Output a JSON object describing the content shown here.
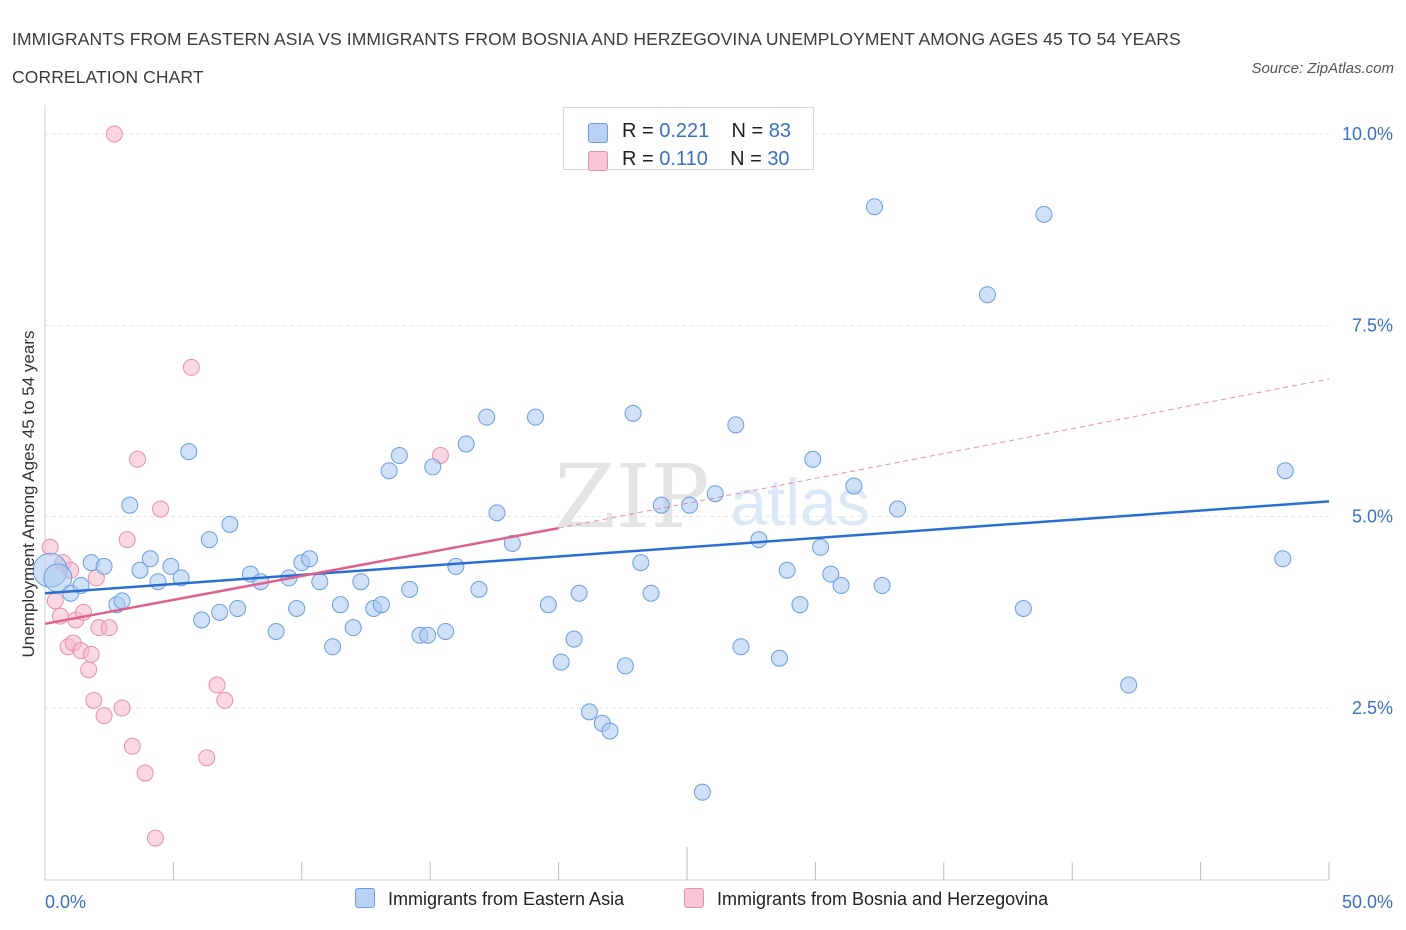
{
  "title": "IMMIGRANTS FROM EASTERN ASIA VS IMMIGRANTS FROM BOSNIA AND HERZEGOVINA UNEMPLOYMENT AMONG AGES 45 TO 54 YEARS CORRELATION CHART",
  "source": "Source: ZipAtlas.com",
  "watermark": {
    "zip": "ZIP",
    "atlas": "atlas"
  },
  "legend": {
    "r_label": "R =",
    "n_label": "N =",
    "series1": {
      "r": "0.221",
      "n": "83"
    },
    "series2": {
      "r": "0.110",
      "n": "30"
    }
  },
  "colors": {
    "blue_fill": "#aac8f0",
    "blue_stroke": "#6a9ee0",
    "blue_line": "#2a6fd0",
    "pink_fill": "#f5b8cb",
    "pink_stroke": "#e890ab",
    "pink_line": "#e0608d",
    "axis_label": "#3a6fc4",
    "grid": "#e6e6e6"
  },
  "chart_data": {
    "type": "scatter",
    "title": "IMMIGRANTS FROM EASTERN ASIA VS IMMIGRANTS FROM BOSNIA AND HERZEGOVINA UNEMPLOYMENT AMONG AGES 45 TO 54 YEARS CORRELATION CHART",
    "ylabel": "Unemployment Among Ages 45 to 54 years",
    "xlim": [
      0,
      50
    ],
    "ylim": [
      0,
      10.5
    ],
    "x_tick_labels": [
      "0.0%",
      "50.0%"
    ],
    "y_ticks": [
      2.5,
      5.0,
      7.5,
      10.0
    ],
    "y_tick_labels": [
      "2.5%",
      "5.0%",
      "7.5%",
      "10.0%"
    ],
    "series": [
      {
        "name": "Immigrants from Eastern Asia",
        "color": "#aac8f0",
        "trend": {
          "x": [
            0,
            50
          ],
          "y": [
            4.0,
            5.2
          ],
          "style": "solid"
        },
        "points": [
          [
            0.2,
            4.3
          ],
          [
            0.5,
            4.2
          ],
          [
            1.0,
            4.0
          ],
          [
            1.4,
            4.1
          ],
          [
            1.8,
            4.4
          ],
          [
            2.3,
            4.35
          ],
          [
            2.8,
            3.85
          ],
          [
            3.0,
            3.9
          ],
          [
            3.3,
            5.15
          ],
          [
            3.7,
            4.3
          ],
          [
            4.1,
            4.45
          ],
          [
            4.4,
            4.15
          ],
          [
            4.9,
            4.35
          ],
          [
            5.3,
            4.2
          ],
          [
            5.6,
            5.85
          ],
          [
            6.1,
            3.65
          ],
          [
            6.4,
            4.7
          ],
          [
            6.8,
            3.75
          ],
          [
            7.2,
            4.9
          ],
          [
            7.5,
            3.8
          ],
          [
            8.0,
            4.25
          ],
          [
            8.4,
            4.15
          ],
          [
            9.0,
            3.5
          ],
          [
            9.5,
            4.2
          ],
          [
            9.8,
            3.8
          ],
          [
            10.0,
            4.4
          ],
          [
            10.3,
            4.45
          ],
          [
            10.7,
            4.15
          ],
          [
            11.2,
            3.3
          ],
          [
            11.5,
            3.85
          ],
          [
            12.0,
            3.55
          ],
          [
            12.3,
            4.15
          ],
          [
            12.8,
            3.8
          ],
          [
            13.1,
            3.85
          ],
          [
            13.4,
            5.6
          ],
          [
            13.8,
            5.8
          ],
          [
            14.2,
            4.05
          ],
          [
            14.6,
            3.45
          ],
          [
            14.9,
            3.45
          ],
          [
            15.1,
            5.65
          ],
          [
            15.6,
            3.5
          ],
          [
            16.0,
            4.35
          ],
          [
            16.4,
            5.95
          ],
          [
            16.9,
            4.05
          ],
          [
            17.2,
            6.3
          ],
          [
            17.6,
            5.05
          ],
          [
            18.2,
            4.65
          ],
          [
            19.1,
            6.3
          ],
          [
            19.6,
            3.85
          ],
          [
            20.1,
            3.1
          ],
          [
            20.6,
            3.4
          ],
          [
            20.8,
            4.0
          ],
          [
            21.2,
            2.45
          ],
          [
            21.7,
            2.3
          ],
          [
            22.0,
            2.2
          ],
          [
            22.6,
            3.05
          ],
          [
            22.9,
            6.35
          ],
          [
            23.2,
            4.4
          ],
          [
            23.6,
            4.0
          ],
          [
            24.0,
            5.15
          ],
          [
            25.1,
            5.15
          ],
          [
            25.6,
            1.4
          ],
          [
            26.1,
            5.3
          ],
          [
            26.9,
            6.2
          ],
          [
            27.1,
            3.3
          ],
          [
            27.8,
            4.7
          ],
          [
            28.6,
            3.15
          ],
          [
            28.9,
            4.3
          ],
          [
            29.4,
            3.85
          ],
          [
            29.9,
            5.75
          ],
          [
            30.2,
            4.6
          ],
          [
            30.6,
            4.25
          ],
          [
            31.0,
            4.1
          ],
          [
            31.5,
            5.4
          ],
          [
            32.3,
            9.05
          ],
          [
            32.6,
            4.1
          ],
          [
            33.2,
            5.1
          ],
          [
            36.7,
            7.9
          ],
          [
            38.1,
            3.8
          ],
          [
            38.9,
            8.95
          ],
          [
            42.2,
            2.8
          ],
          [
            48.2,
            4.45
          ],
          [
            48.3,
            5.6
          ]
        ]
      },
      {
        "name": "Immigrants from Bosnia and Herzegovina",
        "color": "#f5b8cb",
        "trend": {
          "x": [
            0,
            20
          ],
          "y": [
            3.6,
            4.85
          ],
          "style": "solid",
          "extended": {
            "x": [
              20,
              50
            ],
            "y": [
              4.85,
              6.8
            ],
            "style": "dashed"
          }
        },
        "points": [
          [
            0.2,
            4.6
          ],
          [
            0.4,
            3.9
          ],
          [
            0.6,
            3.7
          ],
          [
            0.7,
            4.4
          ],
          [
            0.9,
            3.3
          ],
          [
            1.0,
            4.3
          ],
          [
            1.1,
            3.35
          ],
          [
            1.2,
            3.65
          ],
          [
            1.4,
            3.25
          ],
          [
            1.5,
            3.75
          ],
          [
            1.7,
            3.0
          ],
          [
            1.8,
            3.2
          ],
          [
            1.9,
            2.6
          ],
          [
            2.0,
            4.2
          ],
          [
            2.1,
            3.55
          ],
          [
            2.3,
            2.4
          ],
          [
            2.5,
            3.55
          ],
          [
            2.7,
            10.0
          ],
          [
            3.0,
            2.5
          ],
          [
            3.2,
            4.7
          ],
          [
            3.4,
            2.0
          ],
          [
            3.6,
            5.75
          ],
          [
            3.9,
            1.65
          ],
          [
            4.3,
            0.8
          ],
          [
            4.5,
            5.1
          ],
          [
            5.7,
            6.95
          ],
          [
            6.3,
            1.85
          ],
          [
            6.7,
            2.8
          ],
          [
            7.0,
            2.6
          ],
          [
            15.4,
            5.8
          ]
        ]
      }
    ]
  },
  "bottom_legend": {
    "series1_label": "Immigrants from Eastern Asia",
    "series2_label": "Immigrants from Bosnia and Herzegovina"
  }
}
